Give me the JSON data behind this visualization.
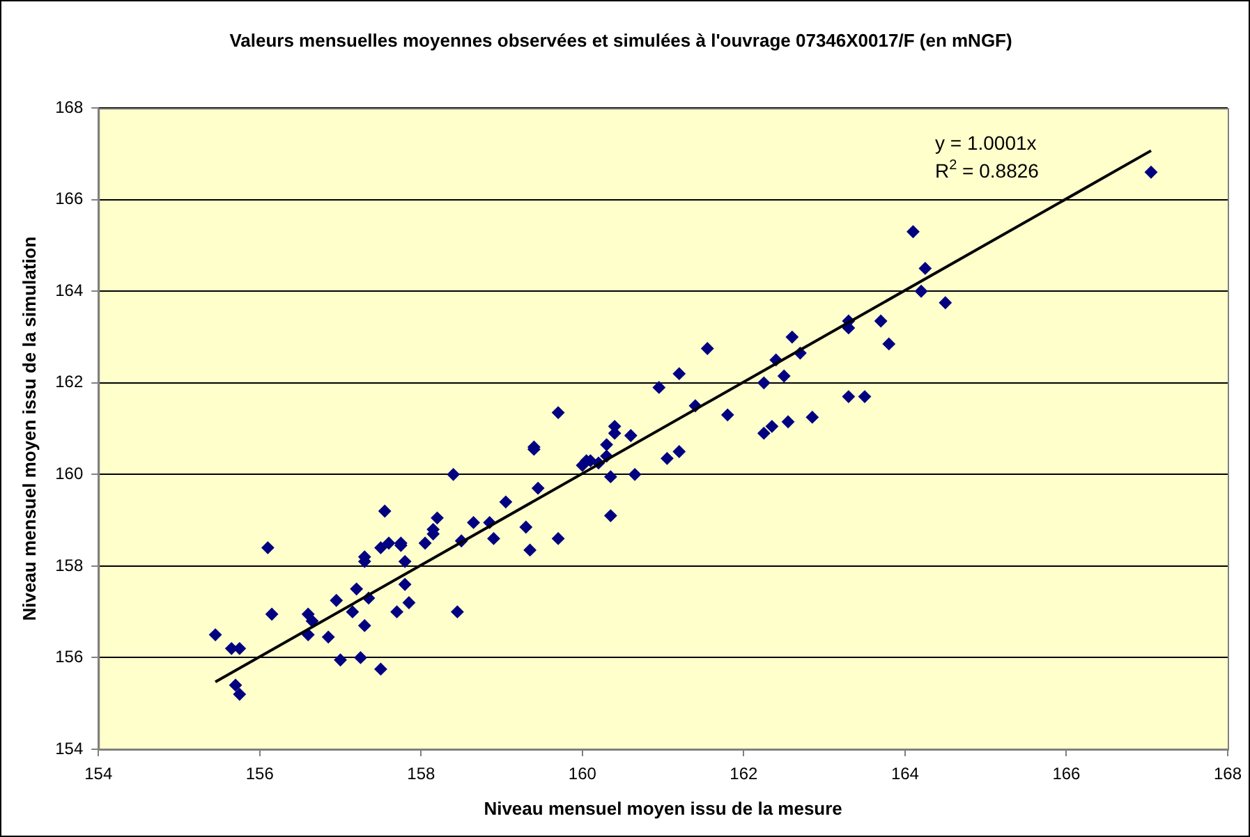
{
  "chart_data": {
    "type": "scatter",
    "title": "Valeurs mensuelles moyennes observées et simulées à l'ouvrage 07346X0017/F (en mNGF)",
    "xlabel": "Niveau mensuel moyen issu de la mesure",
    "ylabel": "Niveau mensuel moyen issu de la simulation",
    "annotations": [
      "y = 1.0001x",
      "R$^{2}$ = 0.8826"
    ],
    "xlim": [
      154,
      168
    ],
    "xticks": [
      154,
      156,
      158,
      160,
      162,
      164,
      166,
      168
    ],
    "ylim": [
      154,
      168
    ],
    "yticks": [
      154,
      156,
      158,
      160,
      162,
      164,
      166,
      168
    ],
    "grid": "y",
    "legend": false,
    "marker": "diamond",
    "series": [
      {
        "color": "#000080",
        "x": [
          155.45,
          155.65,
          155.75,
          155.7,
          155.75,
          156.1,
          156.15,
          156.6,
          156.6,
          156.65,
          156.85,
          156.95,
          157.0,
          157.15,
          157.2,
          157.25,
          157.3,
          157.3,
          157.3,
          157.35,
          157.5,
          157.5,
          157.55,
          157.6,
          157.7,
          157.75,
          157.75,
          157.8,
          157.8,
          157.85,
          158.05,
          158.15,
          158.15,
          158.2,
          158.4,
          158.45,
          158.5,
          158.65,
          158.9,
          158.85,
          159.05,
          159.3,
          159.35,
          159.4,
          159.45,
          159.4,
          159.7,
          159.7,
          160.0,
          160.05,
          160.1,
          160.2,
          160.3,
          160.3,
          160.35,
          160.35,
          160.4,
          160.4,
          160.6,
          160.65,
          160.95,
          161.05,
          161.2,
          161.2,
          161.4,
          161.55,
          161.8,
          162.25,
          162.25,
          162.35,
          162.4,
          162.5,
          162.55,
          162.6,
          162.7,
          162.85,
          163.3,
          163.3,
          163.3,
          163.5,
          163.7,
          163.8,
          164.1,
          164.2,
          164.25,
          164.5,
          167.05
        ],
        "values": [
          156.5,
          156.2,
          156.2,
          155.4,
          155.2,
          158.4,
          156.95,
          156.95,
          156.5,
          156.8,
          156.45,
          157.25,
          155.95,
          157.0,
          157.5,
          156.0,
          158.2,
          158.1,
          156.7,
          157.3,
          155.75,
          158.4,
          159.2,
          158.5,
          157.0,
          158.5,
          158.45,
          157.6,
          158.1,
          157.2,
          158.5,
          158.7,
          158.8,
          159.05,
          160.0,
          157.0,
          158.55,
          158.95,
          158.6,
          158.95,
          159.4,
          158.85,
          158.35,
          160.6,
          159.7,
          160.55,
          161.35,
          158.6,
          160.2,
          160.3,
          160.3,
          160.25,
          160.65,
          160.4,
          159.95,
          159.1,
          161.05,
          160.9,
          160.85,
          160.0,
          161.9,
          160.35,
          162.2,
          160.5,
          161.5,
          162.75,
          161.3,
          162.0,
          160.9,
          161.05,
          162.5,
          162.15,
          161.15,
          163.0,
          162.65,
          161.25,
          163.35,
          163.2,
          161.7,
          161.7,
          163.35,
          162.85,
          165.3,
          164.0,
          164.5,
          163.75,
          166.6
        ]
      },
      {
        "type": "line",
        "marker": "none",
        "color": "#000000",
        "x": [
          155.45,
          167.05
        ],
        "values": [
          155.47,
          167.07
        ]
      }
    ]
  }
}
